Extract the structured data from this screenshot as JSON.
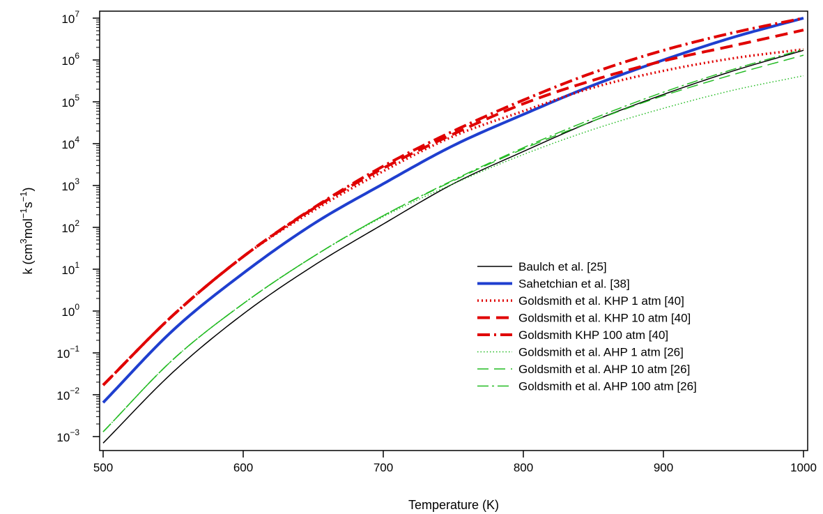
{
  "chart_data": {
    "type": "line",
    "title": "",
    "xlabel": "Temperature (K)",
    "ylabel": {
      "prefix": "k (cm",
      "p1": "3",
      "mid1": "mol",
      "p2": "−1",
      "mid2": "s",
      "p3": "−1",
      "suffix": ")"
    },
    "xlim": [
      500,
      1000
    ],
    "ylim": [
      0.0005,
      15000000
    ],
    "yscale": "log",
    "xticks": [
      "500",
      "600",
      "700",
      "800",
      "900",
      "1000"
    ],
    "yticks": [
      {
        "base": "10",
        "exp": "-3"
      },
      {
        "base": "10",
        "exp": "-2"
      },
      {
        "base": "10",
        "exp": "-1"
      },
      {
        "base": "10",
        "exp": "0"
      },
      {
        "base": "10",
        "exp": "1"
      },
      {
        "base": "10",
        "exp": "2"
      },
      {
        "base": "10",
        "exp": "3"
      },
      {
        "base": "10",
        "exp": "4"
      },
      {
        "base": "10",
        "exp": "5"
      },
      {
        "base": "10",
        "exp": "6"
      },
      {
        "base": "10",
        "exp": "7"
      }
    ],
    "grid": false,
    "legend_position": "lower-right",
    "x": [
      500,
      550,
      600,
      650,
      700,
      750,
      800,
      850,
      900,
      950,
      1000
    ],
    "series": [
      {
        "name": "Baulch et al. [25]",
        "color": "#000000",
        "width": 1.5,
        "dash": "",
        "values": [
          0.0007,
          0.035,
          0.85,
          12,
          120,
          1100,
          6500,
          35000,
          150000,
          550000,
          1700000
        ]
      },
      {
        "name": "Sahetchian et al. [38]",
        "color": "#1f3fcf",
        "width": 4,
        "dash": "",
        "values": [
          0.0065,
          0.35,
          8,
          120,
          1100,
          9000,
          50000,
          250000,
          1000000,
          3500000,
          10000000
        ]
      },
      {
        "name": "Goldsmith et al. KHP 1 atm [40]",
        "color": "#e00000",
        "width": 3.5,
        "dash": "2,4",
        "values": [
          0.017,
          0.8,
          20,
          250,
          2200,
          15000,
          60000,
          220000,
          550000,
          1100000,
          1800000
        ]
      },
      {
        "name": "Goldsmith et al. KHP 10 atm [40]",
        "color": "#e00000",
        "width": 4,
        "dash": "18,9",
        "values": [
          0.017,
          0.8,
          20,
          280,
          2600,
          17000,
          90000,
          330000,
          950000,
          2200000,
          5200000
        ]
      },
      {
        "name": "Goldsmith KHP 100 atm [40]",
        "color": "#e00000",
        "width": 4,
        "dash": "18,6,3,6",
        "values": [
          0.017,
          0.8,
          20,
          290,
          2900,
          20000,
          110000,
          500000,
          1700000,
          4500000,
          10000000
        ]
      },
      {
        "name": "Goldsmith et al. AHP 1 atm [26]",
        "color": "#22bb22",
        "width": 1.5,
        "dash": "1.5,3",
        "values": [
          0.0013,
          0.07,
          1.5,
          20,
          180,
          1100,
          5500,
          22000,
          70000,
          190000,
          420000
        ]
      },
      {
        "name": "Goldsmith et al. AHP 10 atm [26]",
        "color": "#22bb22",
        "width": 1.5,
        "dash": "16,8",
        "values": [
          0.0013,
          0.07,
          1.5,
          20,
          190,
          1300,
          7500,
          35000,
          140000,
          450000,
          1300000
        ]
      },
      {
        "name": "Goldsmith et al. AHP 100 atm [26]",
        "color": "#22bb22",
        "width": 1.5,
        "dash": "16,5,3,5",
        "values": [
          0.0013,
          0.07,
          1.5,
          20,
          190,
          1350,
          8000,
          40000,
          170000,
          600000,
          1800000
        ]
      }
    ]
  }
}
